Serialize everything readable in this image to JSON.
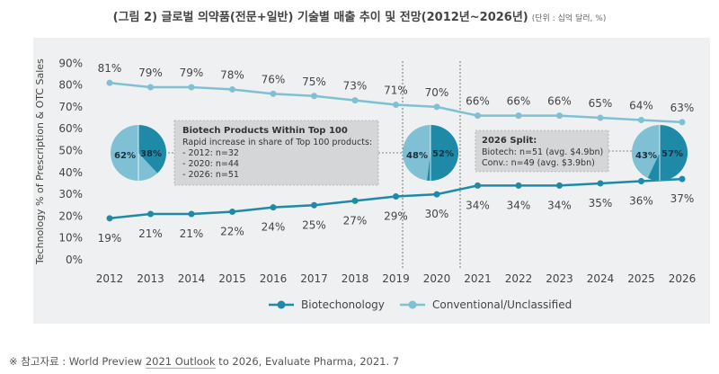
{
  "title": "(그림 2) 글로벌 의약품(전문+일반) 기술별 매출 추이 및 전망(2012년~2026년)",
  "unit_note": "(단위 : 십억 달러, %)",
  "source": {
    "prefix": "※ 참고자료 : World Preview ",
    "highlight": "2021 Outlook",
    "suffix": " to 2026, Evaluate Pharma, 2021. 7"
  },
  "colors": {
    "biotech": "#1e8aa8",
    "conventional": "#7fc0d4",
    "text": "#444444",
    "box": "#d4d6d8"
  },
  "chart_data": {
    "type": "line",
    "categories": [
      "2012",
      "2013",
      "2014",
      "2015",
      "2016",
      "2017",
      "2018",
      "2019",
      "2020",
      "2021",
      "2022",
      "2023",
      "2024",
      "2025",
      "2026"
    ],
    "series": [
      {
        "name": "Biotechonology",
        "values": [
          19,
          21,
          21,
          22,
          24,
          25,
          27,
          29,
          30,
          34,
          34,
          34,
          35,
          36,
          37
        ]
      },
      {
        "name": "Conventional/Unclassified",
        "values": [
          81,
          79,
          79,
          78,
          76,
          75,
          73,
          71,
          70,
          66,
          66,
          66,
          65,
          64,
          63
        ]
      }
    ],
    "ylabel": "Technology % of Prescription & OTC Sales",
    "ylim": [
      0,
      90
    ],
    "yticks": [
      0,
      10,
      20,
      30,
      40,
      50,
      60,
      70,
      80,
      90
    ],
    "legend": "bottom",
    "pies": [
      {
        "year": "2012",
        "biotech": 38,
        "conventional": 62
      },
      {
        "year": "2020",
        "biotech": 52,
        "conventional": 48
      },
      {
        "year": "2026",
        "biotech": 57,
        "conventional": 43
      }
    ],
    "annotations": [
      {
        "title": "Biotech Products Within Top 100",
        "lines": [
          "Rapid increase in share of Top 100 products:",
          "- 2012: n=32",
          "- 2020: n=44",
          "- 2026: n=51"
        ]
      },
      {
        "title": "2026 Split:",
        "lines": [
          "Biotech: n=51 (avg. $4.9bn)",
          "Conv.: n=49 (avg. $3.9bn)"
        ]
      }
    ]
  }
}
